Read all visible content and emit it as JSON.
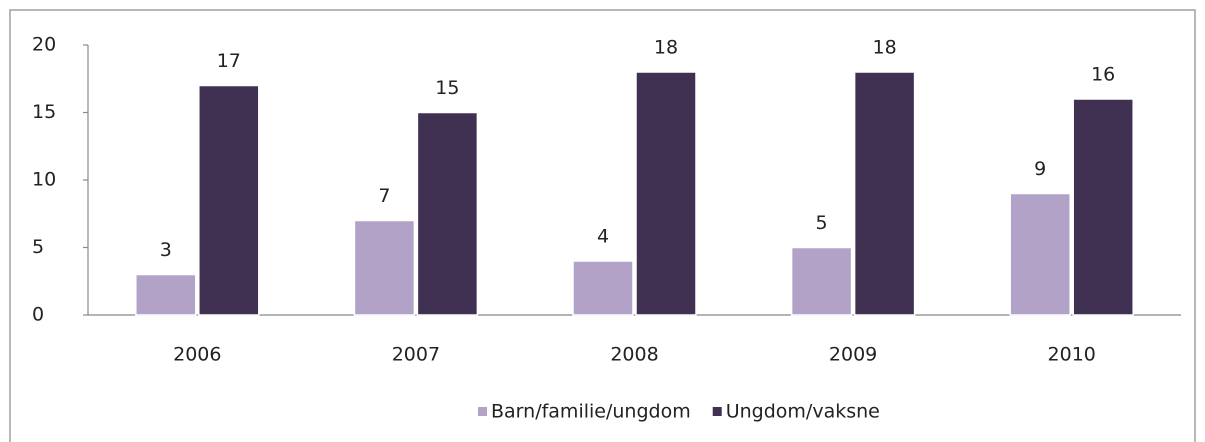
{
  "chart_data": {
    "type": "bar",
    "categories": [
      "2006",
      "2007",
      "2008",
      "2009",
      "2010"
    ],
    "series": [
      {
        "name": "Barn/familie/ungdom",
        "color": "#b3a2c7",
        "values": [
          3,
          7,
          4,
          5,
          9
        ]
      },
      {
        "name": "Ungdom/vaksne",
        "color": "#403152",
        "values": [
          17,
          15,
          18,
          18,
          16
        ]
      }
    ],
    "ylim": [
      0,
      20
    ],
    "yticks": [
      0,
      5,
      10,
      15,
      20
    ],
    "grid": false,
    "legend": "bottom"
  }
}
